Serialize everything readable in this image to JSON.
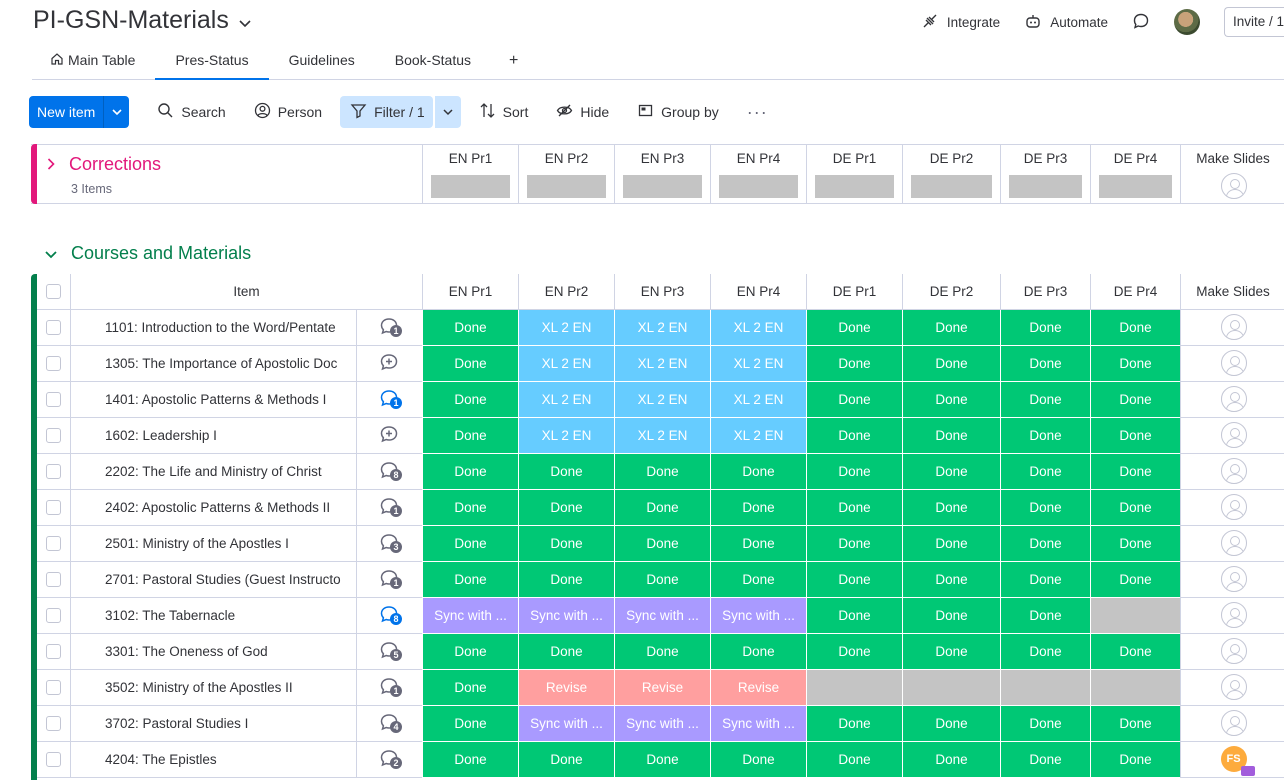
{
  "board": {
    "title": "PI-GSN-Materials"
  },
  "header": {
    "integrate": "Integrate",
    "automate": "Automate",
    "invite": "Invite / 1"
  },
  "tabs": [
    {
      "label": "Main Table"
    },
    {
      "label": "Pres-Status"
    },
    {
      "label": "Guidelines"
    },
    {
      "label": "Book-Status"
    }
  ],
  "tab_add": "+",
  "active_tab": "Pres-Status",
  "toolbar": {
    "new_item": "New item",
    "search": "Search",
    "person": "Person",
    "filter": "Filter / 1",
    "sort": "Sort",
    "hide": "Hide",
    "group_by": "Group by",
    "more": "···"
  },
  "columns": [
    "EN Pr1",
    "EN Pr2",
    "EN Pr3",
    "EN Pr4",
    "DE Pr1",
    "DE Pr2",
    "DE Pr3",
    "DE Pr4",
    "Make Slides"
  ],
  "group_corrections": {
    "title": "Corrections",
    "count": "3 Items",
    "color": "#e2187b"
  },
  "group_courses": {
    "title": "Courses and Materials",
    "color": "#037f4c",
    "item_header": "Item",
    "rows": [
      {
        "name": "1101: Introduction to the Word/Pentate",
        "updates": "1",
        "upd_state": "count",
        "statuses": [
          "Done",
          "XL 2 EN",
          "XL 2 EN",
          "XL 2 EN",
          "Done",
          "Done",
          "Done",
          "Done"
        ],
        "owner": ""
      },
      {
        "name": "1305: The Importance of Apostolic Doc",
        "updates": "",
        "upd_state": "add",
        "statuses": [
          "Done",
          "XL 2 EN",
          "XL 2 EN",
          "XL 2 EN",
          "Done",
          "Done",
          "Done",
          "Done"
        ],
        "owner": ""
      },
      {
        "name": "1401: Apostolic Patterns & Methods I",
        "updates": "1",
        "upd_state": "unread",
        "statuses": [
          "Done",
          "XL 2 EN",
          "XL 2 EN",
          "XL 2 EN",
          "Done",
          "Done",
          "Done",
          "Done"
        ],
        "owner": ""
      },
      {
        "name": "1602: Leadership I",
        "updates": "",
        "upd_state": "add",
        "statuses": [
          "Done",
          "XL 2 EN",
          "XL 2 EN",
          "XL 2 EN",
          "Done",
          "Done",
          "Done",
          "Done"
        ],
        "owner": ""
      },
      {
        "name": "2202: The Life and Ministry of Christ",
        "updates": "8",
        "upd_state": "count",
        "statuses": [
          "Done",
          "Done",
          "Done",
          "Done",
          "Done",
          "Done",
          "Done",
          "Done"
        ],
        "owner": ""
      },
      {
        "name": "2402: Apostolic Patterns & Methods II",
        "updates": "1",
        "upd_state": "count",
        "statuses": [
          "Done",
          "Done",
          "Done",
          "Done",
          "Done",
          "Done",
          "Done",
          "Done"
        ],
        "owner": ""
      },
      {
        "name": "2501: Ministry of the Apostles I",
        "updates": "3",
        "upd_state": "count",
        "statuses": [
          "Done",
          "Done",
          "Done",
          "Done",
          "Done",
          "Done",
          "Done",
          "Done"
        ],
        "owner": ""
      },
      {
        "name": "2701: Pastoral Studies (Guest Instructo",
        "updates": "1",
        "upd_state": "count",
        "statuses": [
          "Done",
          "Done",
          "Done",
          "Done",
          "Done",
          "Done",
          "Done",
          "Done"
        ],
        "owner": ""
      },
      {
        "name": "3102: The Tabernacle",
        "updates": "8",
        "upd_state": "unread",
        "statuses": [
          "Sync with ...",
          "Sync with ...",
          "Sync with ...",
          "Sync with ...",
          "Done",
          "Done",
          "Done",
          ""
        ],
        "owner": ""
      },
      {
        "name": "3301: The Oneness of God",
        "updates": "5",
        "upd_state": "count",
        "statuses": [
          "Done",
          "Done",
          "Done",
          "Done",
          "Done",
          "Done",
          "Done",
          "Done"
        ],
        "owner": ""
      },
      {
        "name": "3502: Ministry of the Apostles II",
        "updates": "1",
        "upd_state": "count",
        "statuses": [
          "Done",
          "Revise",
          "Revise",
          "Revise",
          "",
          "",
          "",
          ""
        ],
        "owner": ""
      },
      {
        "name": "3702: Pastoral Studies I",
        "updates": "4",
        "upd_state": "count",
        "statuses": [
          "Done",
          "Sync with ...",
          "Sync with ...",
          "Sync with ...",
          "Done",
          "Done",
          "Done",
          "Done"
        ],
        "owner": ""
      },
      {
        "name": "4204: The Epistles",
        "updates": "2",
        "upd_state": "count",
        "statuses": [
          "Done",
          "Done",
          "Done",
          "Done",
          "Done",
          "Done",
          "Done",
          "Done"
        ],
        "owner": "FS"
      }
    ]
  },
  "status_colors": {
    "Done": "#00c875",
    "XL 2 EN": "#66ccff",
    "Sync with ...": "#a99aff",
    "Revise": "#ff9f9f",
    "": "#c4c4c4"
  },
  "icons": {
    "integrate": "integrate-icon",
    "automate": "robot-icon",
    "updates": "speech-bubble-icon",
    "search": "search-icon",
    "person": "person-icon",
    "filter": "filter-icon",
    "sort": "sort-icon",
    "hide": "eye-off-icon",
    "group_by": "group-by-icon",
    "home": "home-icon"
  }
}
